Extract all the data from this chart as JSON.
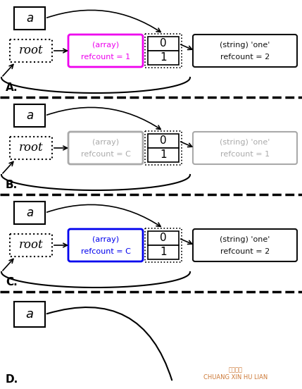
{
  "sections": [
    {
      "label": "A.",
      "array_color": "#ee00ee",
      "array_text_color": "#ee00ee",
      "string_color": "#111111",
      "string_text_color": "#111111",
      "refcount_array": "refcount = 1",
      "refcount_string": "refcount = 2",
      "has_line_below": true,
      "show_full": true
    },
    {
      "label": "B.",
      "array_color": "#aaaaaa",
      "array_text_color": "#aaaaaa",
      "string_color": "#aaaaaa",
      "string_text_color": "#aaaaaa",
      "refcount_array": "refcount = C",
      "refcount_string": "refcount = 1",
      "has_line_below": true,
      "show_full": true
    },
    {
      "label": "C.",
      "array_color": "#0000ee",
      "array_text_color": "#0000ee",
      "string_color": "#111111",
      "string_text_color": "#111111",
      "refcount_array": "refcount = C",
      "refcount_string": "refcount = 2",
      "has_line_below": true,
      "show_full": true
    },
    {
      "label": "D.",
      "array_color": "#000000",
      "array_text_color": "#000000",
      "string_color": "#000000",
      "string_text_color": "#000000",
      "refcount_array": "",
      "refcount_string": "",
      "has_line_below": false,
      "show_full": false
    }
  ],
  "watermark_line1": "创新互联",
  "watermark_line2": "CHUANG XIN HU LIAN",
  "watermark_color": "#cc7733"
}
